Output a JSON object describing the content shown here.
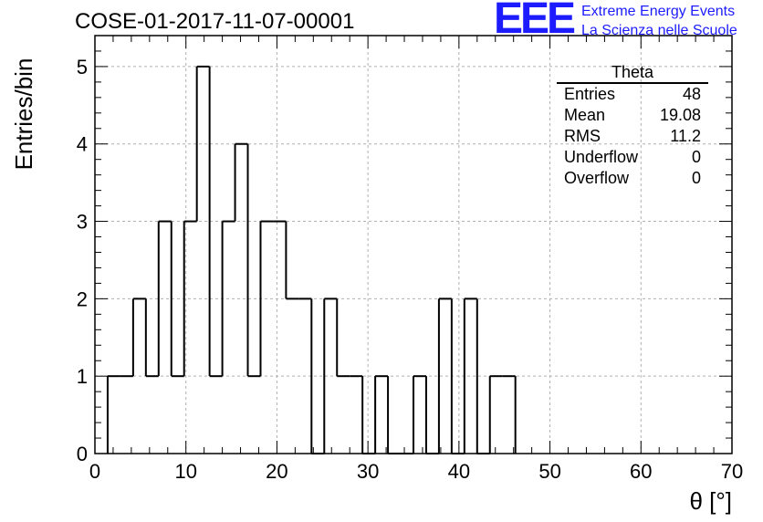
{
  "chart_data": {
    "type": "bar",
    "title": "COSE-01-2017-11-07-00001",
    "xlabel": "θ [°]",
    "ylabel": "Entries/bin",
    "xlim": [
      0,
      70
    ],
    "ylim": [
      0,
      5.4
    ],
    "bin_width": 1.4,
    "bins": [
      {
        "x0": 1.4,
        "x1": 2.8,
        "value": 1
      },
      {
        "x0": 2.8,
        "x1": 4.2,
        "value": 1
      },
      {
        "x0": 4.2,
        "x1": 5.6,
        "value": 2
      },
      {
        "x0": 5.6,
        "x1": 7.0,
        "value": 1
      },
      {
        "x0": 7.0,
        "x1": 8.4,
        "value": 3
      },
      {
        "x0": 8.4,
        "x1": 9.8,
        "value": 1
      },
      {
        "x0": 9.8,
        "x1": 11.2,
        "value": 3
      },
      {
        "x0": 11.2,
        "x1": 12.6,
        "value": 5
      },
      {
        "x0": 12.6,
        "x1": 14.0,
        "value": 1
      },
      {
        "x0": 14.0,
        "x1": 15.4,
        "value": 3
      },
      {
        "x0": 15.4,
        "x1": 16.8,
        "value": 4
      },
      {
        "x0": 16.8,
        "x1": 18.2,
        "value": 1
      },
      {
        "x0": 18.2,
        "x1": 19.6,
        "value": 3
      },
      {
        "x0": 19.6,
        "x1": 21.0,
        "value": 3
      },
      {
        "x0": 21.0,
        "x1": 22.4,
        "value": 2
      },
      {
        "x0": 22.4,
        "x1": 23.8,
        "value": 2
      },
      {
        "x0": 23.8,
        "x1": 25.2,
        "value": 0
      },
      {
        "x0": 25.2,
        "x1": 26.6,
        "value": 2
      },
      {
        "x0": 26.6,
        "x1": 28.0,
        "value": 1
      },
      {
        "x0": 28.0,
        "x1": 29.4,
        "value": 1
      },
      {
        "x0": 29.4,
        "x1": 30.8,
        "value": 0
      },
      {
        "x0": 30.8,
        "x1": 32.2,
        "value": 1
      },
      {
        "x0": 32.2,
        "x1": 33.6,
        "value": 0
      },
      {
        "x0": 33.6,
        "x1": 35.0,
        "value": 0
      },
      {
        "x0": 35.0,
        "x1": 36.4,
        "value": 1
      },
      {
        "x0": 36.4,
        "x1": 37.8,
        "value": 0
      },
      {
        "x0": 37.8,
        "x1": 39.2,
        "value": 2
      },
      {
        "x0": 39.2,
        "x1": 40.6,
        "value": 0
      },
      {
        "x0": 40.6,
        "x1": 42.0,
        "value": 2
      },
      {
        "x0": 42.0,
        "x1": 43.4,
        "value": 0
      },
      {
        "x0": 43.4,
        "x1": 44.8,
        "value": 1
      },
      {
        "x0": 44.8,
        "x1": 46.2,
        "value": 1
      }
    ],
    "x_ticks": [
      "0",
      "10",
      "20",
      "30",
      "40",
      "50",
      "60",
      "70"
    ],
    "y_ticks": [
      "0",
      "1",
      "2",
      "3",
      "4",
      "5"
    ],
    "grid": true,
    "line_color": "#000000",
    "grid_color": "#b0b0b0",
    "stats_box": {
      "title": "Theta",
      "rows": [
        {
          "label": "Entries",
          "value": "48"
        },
        {
          "label": "Mean",
          "value": "19.08"
        },
        {
          "label": "RMS",
          "value": "11.2"
        },
        {
          "label": "Underflow",
          "value": "0"
        },
        {
          "label": "Overflow",
          "value": "0"
        }
      ],
      "placement": "top-right"
    }
  },
  "logo": {
    "mark": "EEE",
    "line1": "Extreme Energy Events",
    "line2": "La Scienza nelle Scuole",
    "color": "#1c1cff"
  }
}
